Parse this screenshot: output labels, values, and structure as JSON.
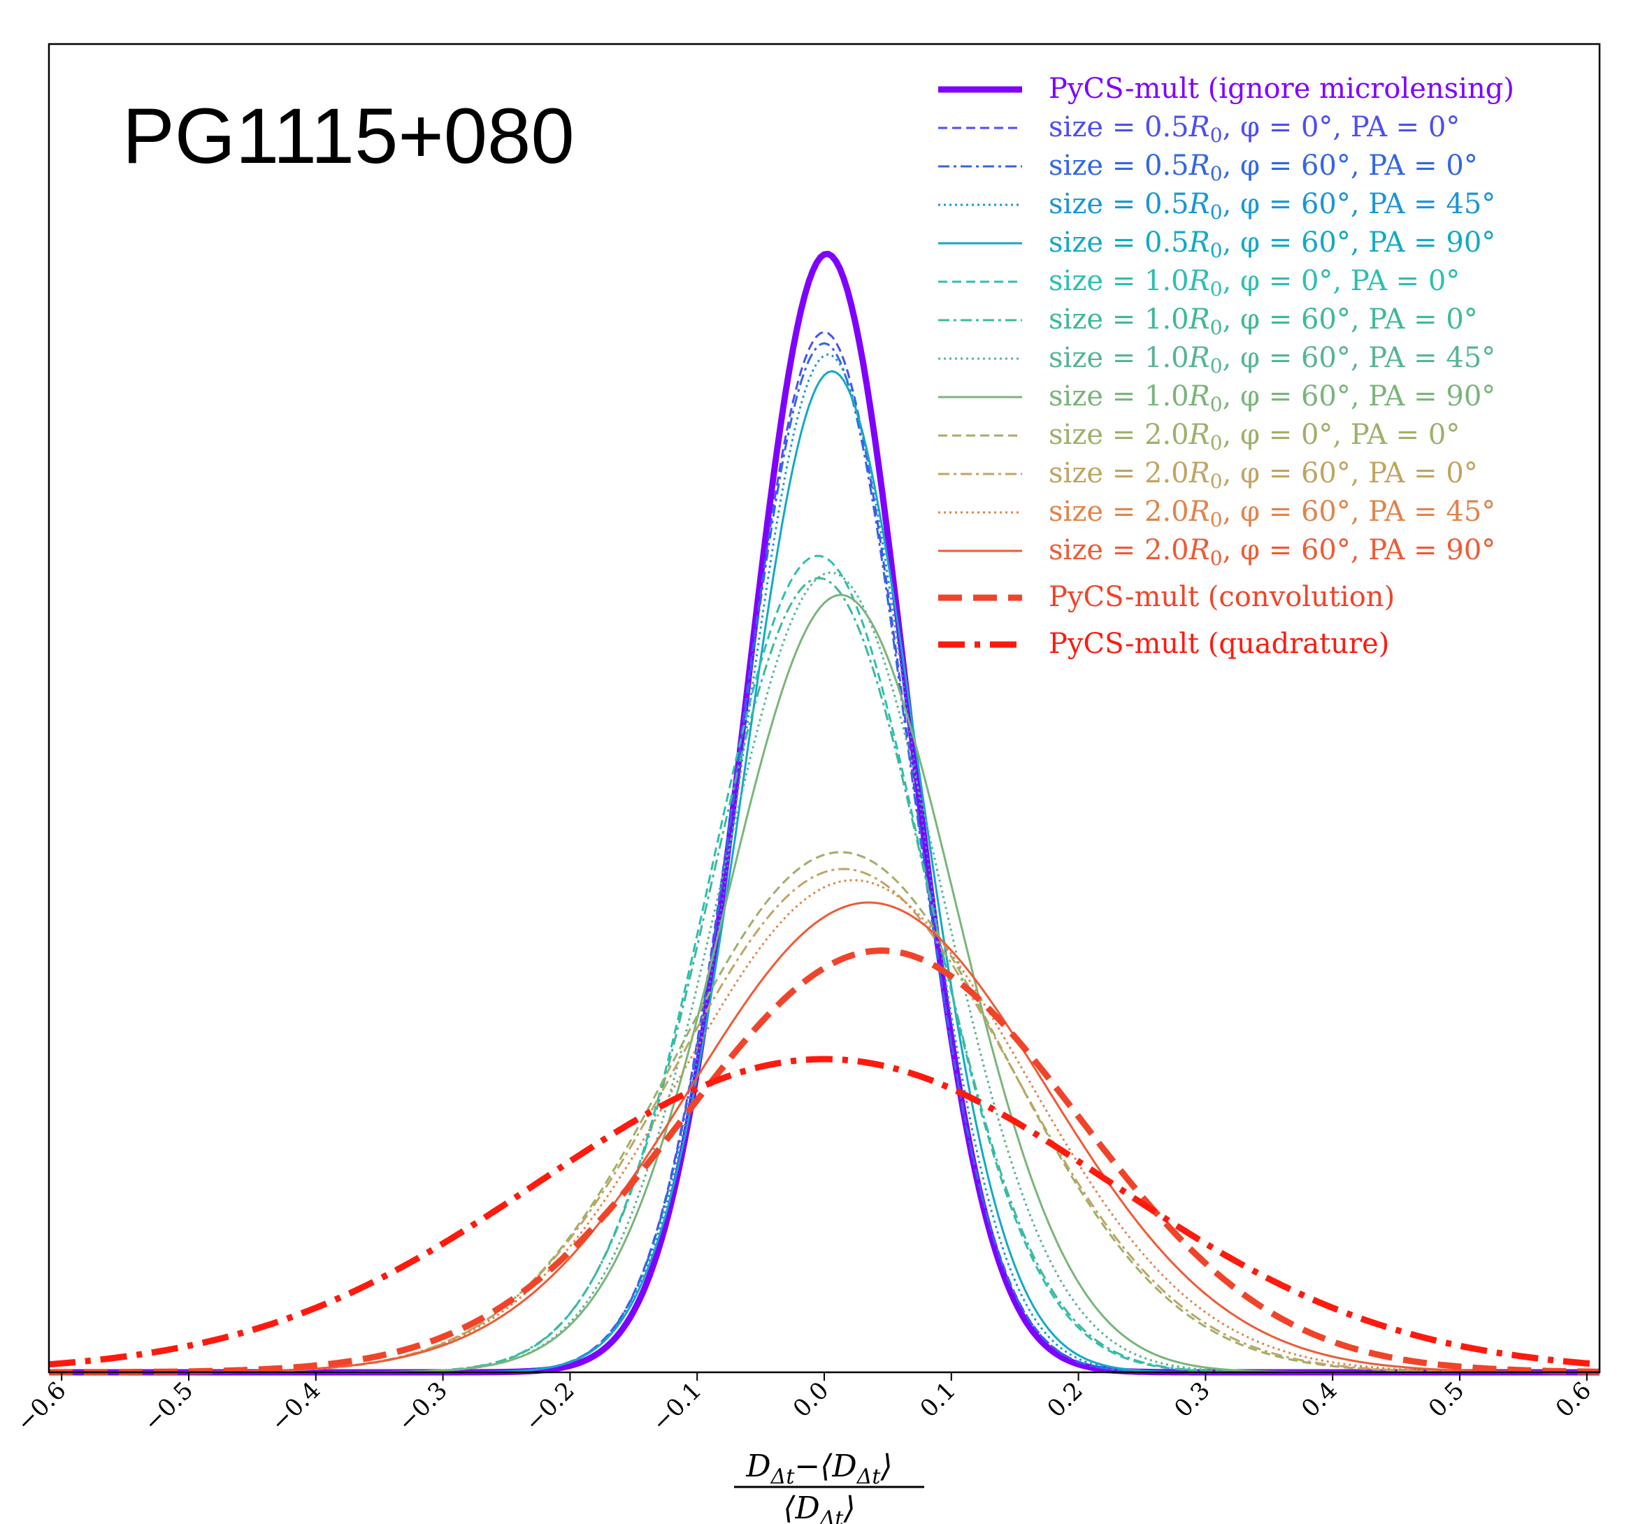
{
  "chart_data": {
    "type": "line",
    "title": "PG1115+080",
    "xlabel": {
      "numerator": "D_{Δt}−⟨D_{Δt}⟩",
      "denominator": "⟨D_{Δt}⟩",
      "numerator_parts": [
        "D",
        "Δt",
        "−⟨D",
        "Δt",
        "⟩"
      ],
      "denominator_parts": [
        "⟨D",
        "Δt",
        "⟩"
      ]
    },
    "ylabel": "",
    "xlim": [
      -0.61,
      0.61
    ],
    "ylim": [
      0,
      1.0
    ],
    "x_ticks": [
      -0.6,
      -0.5,
      -0.4,
      -0.3,
      -0.2,
      -0.1,
      0.0,
      0.1,
      0.2,
      0.3,
      0.4,
      0.5,
      0.6
    ],
    "x_tick_labels": [
      "−0.6",
      "−0.5",
      "−0.4",
      "−0.3",
      "−0.2",
      "−0.1",
      "0.0",
      "0.1",
      "0.2",
      "0.3",
      "0.4",
      "0.5",
      "0.6"
    ],
    "y_ticks_shown": false,
    "grid": false,
    "legend_position": "top-right",
    "series": [
      {
        "name": "PyCS-mult (ignore microlensing)",
        "color": "#8000ff",
        "style": "solid",
        "width": "thick",
        "mu": 0.002,
        "sigma": 0.063,
        "peak": 1.0,
        "tail": "light"
      },
      {
        "name": "size = 0.5R0, φ = 0°,  PA = 0°",
        "color": "#4b4ff2",
        "style": "dashed",
        "width": "thin",
        "mu": 0.0,
        "sigma": 0.066,
        "peak": 0.93
      },
      {
        "name": "size = 0.5R0, φ = 60°, PA = 0°",
        "color": "#3166e6",
        "style": "dashdot",
        "width": "thin",
        "mu": 0.0,
        "sigma": 0.066,
        "peak": 0.92
      },
      {
        "name": "size = 0.5R0, φ = 60°, PA = 45°",
        "color": "#1996d6",
        "style": "dotted",
        "width": "thin",
        "mu": 0.003,
        "sigma": 0.067,
        "peak": 0.91
      },
      {
        "name": "size = 0.5R0, φ = 60°, PA = 90°",
        "color": "#12a9c4",
        "style": "solid",
        "width": "thin",
        "mu": 0.006,
        "sigma": 0.068,
        "peak": 0.895
      },
      {
        "name": "size = 1.0R0, φ = 0°,  PA = 0°",
        "color": "#2cbfb0",
        "style": "dashed",
        "width": "thin",
        "mu": -0.005,
        "sigma": 0.085,
        "peak": 0.73
      },
      {
        "name": "size = 1.0R0, φ = 60°, PA = 0°",
        "color": "#3fb89a",
        "style": "dashdot",
        "width": "thin",
        "mu": -0.004,
        "sigma": 0.086,
        "peak": 0.71
      },
      {
        "name": "size = 1.0R0, φ = 60°, PA = 45°",
        "color": "#55b592",
        "style": "dotted",
        "width": "thin",
        "mu": 0.005,
        "sigma": 0.087,
        "peak": 0.715
      },
      {
        "name": "size = 1.0R0, φ = 60°, PA = 90°",
        "color": "#79b579",
        "style": "solid",
        "width": "thin",
        "mu": 0.013,
        "sigma": 0.09,
        "peak": 0.695
      },
      {
        "name": "size = 2.0R0, φ = 0°,  PA = 0°",
        "color": "#9db069",
        "style": "dashed",
        "width": "thin",
        "mu": 0.013,
        "sigma": 0.13,
        "peak": 0.465
      },
      {
        "name": "size = 2.0R0, φ = 60°, PA = 0°",
        "color": "#c0a462",
        "style": "dashdot",
        "width": "thin",
        "mu": 0.015,
        "sigma": 0.132,
        "peak": 0.45
      },
      {
        "name": "size = 2.0R0, φ = 60°, PA = 45°",
        "color": "#e0844b",
        "style": "dotted",
        "width": "thin",
        "mu": 0.023,
        "sigma": 0.135,
        "peak": 0.44
      },
      {
        "name": "size = 2.0R0, φ = 60°, PA = 90°",
        "color": "#ef5a34",
        "style": "solid",
        "width": "thin",
        "mu": 0.035,
        "sigma": 0.14,
        "peak": 0.42
      },
      {
        "name": "PyCS-mult (convolution)",
        "color": "#f0442a",
        "style": "dashed",
        "width": "thick",
        "mu": 0.045,
        "sigma": 0.155,
        "peak": 0.377
      },
      {
        "name": "PyCS-mult (quadrature)",
        "color": "#ff1a0d",
        "style": "dashdot",
        "width": "thick",
        "mu": 0.0,
        "sigma": 0.225,
        "peak": 0.28
      }
    ]
  },
  "legend": [
    {
      "color": "#8000ff",
      "prefix": "PyCS-mult (ignore microlensing)",
      "r": "",
      "rest": ""
    },
    {
      "color": "#4b4ff2",
      "prefix": "size = 0.5",
      "r": "R",
      "rest": ", φ = 0°,  PA = 0°"
    },
    {
      "color": "#3166e6",
      "prefix": "size = 0.5",
      "r": "R",
      "rest": ", φ = 60°, PA = 0°"
    },
    {
      "color": "#1996d6",
      "prefix": "size = 0.5",
      "r": "R",
      "rest": ", φ = 60°, PA = 45°"
    },
    {
      "color": "#12a9c4",
      "prefix": "size = 0.5",
      "r": "R",
      "rest": ", φ = 60°, PA = 90°"
    },
    {
      "color": "#2cbfb0",
      "prefix": "size = 1.0",
      "r": "R",
      "rest": ", φ = 0°,  PA = 0°"
    },
    {
      "color": "#3fb89a",
      "prefix": "size = 1.0",
      "r": "R",
      "rest": ", φ = 60°, PA = 0°"
    },
    {
      "color": "#55b592",
      "prefix": "size = 1.0",
      "r": "R",
      "rest": ", φ = 60°, PA = 45°"
    },
    {
      "color": "#79b579",
      "prefix": "size = 1.0",
      "r": "R",
      "rest": ", φ = 60°, PA = 90°"
    },
    {
      "color": "#9db069",
      "prefix": "size = 2.0",
      "r": "R",
      "rest": ", φ = 0°,  PA = 0°"
    },
    {
      "color": "#c0a462",
      "prefix": "size = 2.0",
      "r": "R",
      "rest": ", φ = 60°, PA = 0°"
    },
    {
      "color": "#e0844b",
      "prefix": "size = 2.0",
      "r": "R",
      "rest": ", φ = 60°, PA = 45°"
    },
    {
      "color": "#ef5a34",
      "prefix": "size = 2.0",
      "r": "R",
      "rest": ", φ = 60°, PA = 90°"
    },
    {
      "color": "#f0442a",
      "prefix": "PyCS-mult (convolution)",
      "r": "",
      "rest": ""
    },
    {
      "color": "#ff1a0d",
      "prefix": "PyCS-mult (quadrature)",
      "r": "",
      "rest": ""
    }
  ],
  "r_subscript": "0"
}
